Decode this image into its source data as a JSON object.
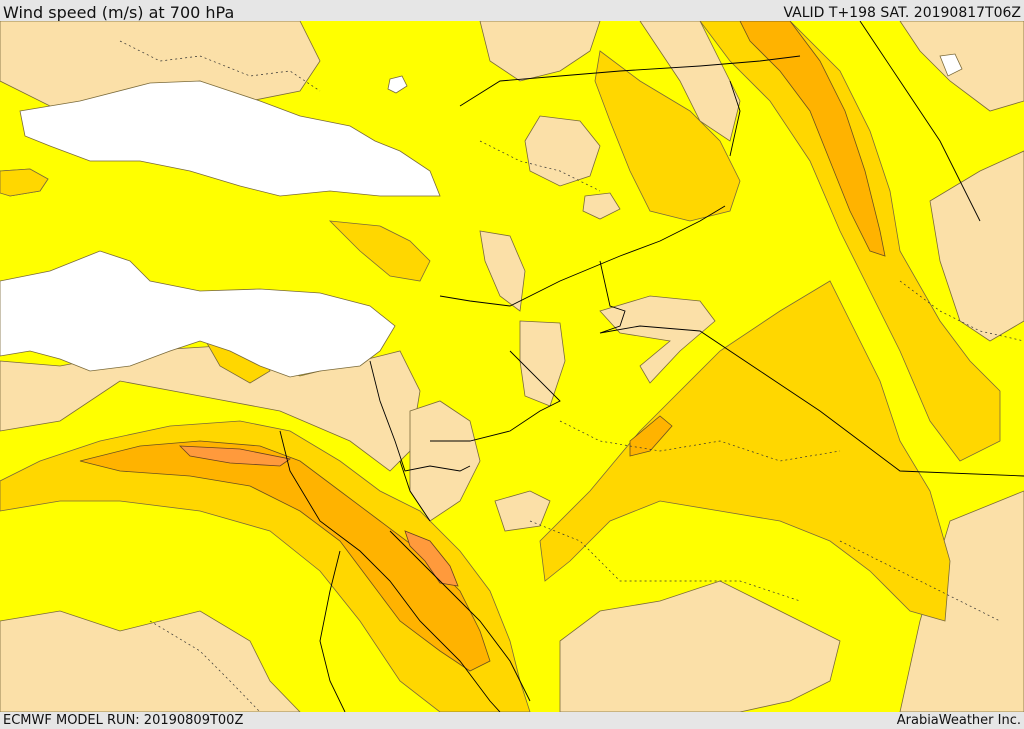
{
  "header": {
    "title": "Wind speed (m/s) at 700 hPa",
    "valid": "VALID T+198 SAT. 20190817T06Z"
  },
  "footer": {
    "model_run": "ECMWF MODEL RUN: 20190809T00Z",
    "credit": "ArabiaWeather Inc."
  },
  "colors": {
    "background_level": "#ffff00",
    "calm_level": "#fbe0a8",
    "moderate_level": "#ffd700",
    "strong_level": "#ffb300",
    "stronger_level": "#ff9a3c",
    "sea_mask": "#ffffff",
    "border_line": "#000000"
  }
}
